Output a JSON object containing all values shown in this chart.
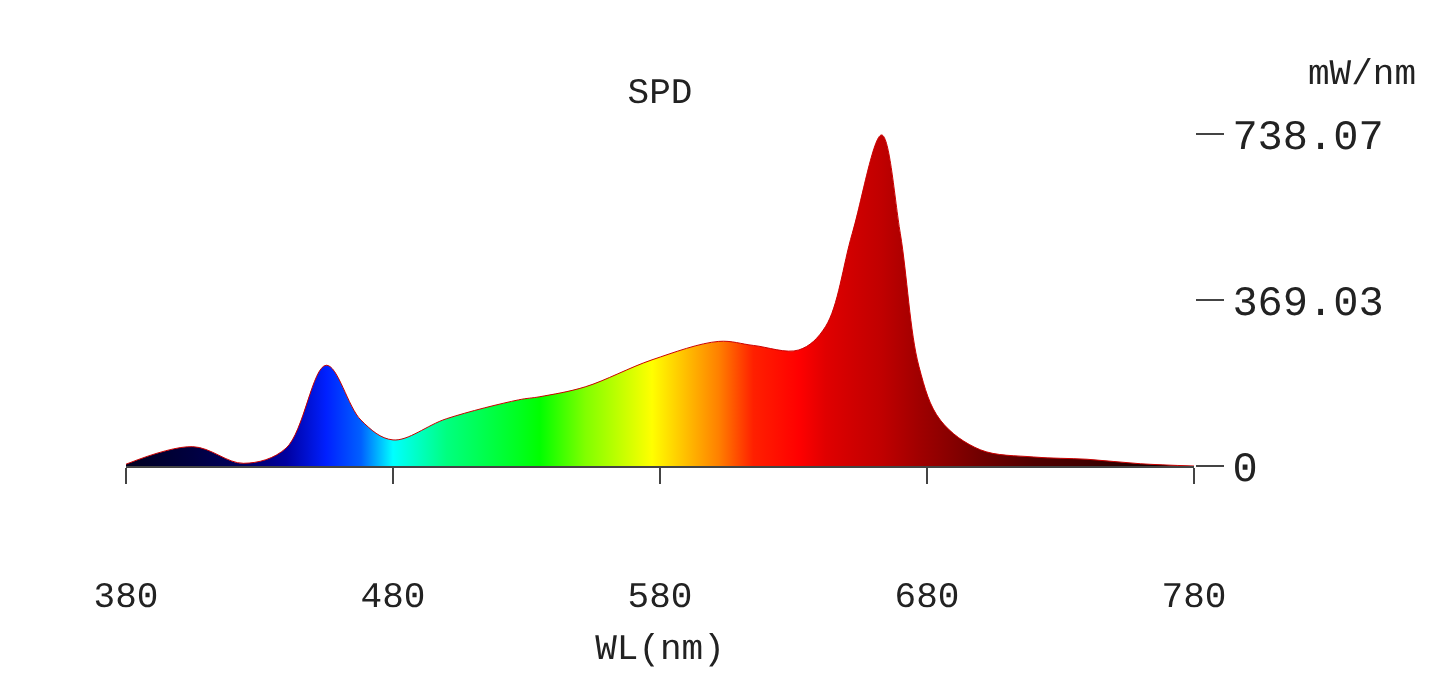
{
  "chart_data": {
    "type": "area",
    "title": "SPD",
    "xlabel": "WL(nm)",
    "ylabel": "mW/nm",
    "x": [
      380,
      405,
      424,
      440,
      455,
      468,
      480,
      500,
      527,
      535,
      552,
      577,
      602,
      615,
      632,
      642,
      652,
      663,
      670,
      677,
      685,
      700,
      720,
      740,
      760,
      780
    ],
    "series": [
      {
        "color": "#cc0000",
        "values": [
          4,
          43,
          6,
          40,
          224,
          102,
          58,
          105,
          147,
          154,
          176,
          236,
          277,
          268,
          258,
          310,
          517,
          736,
          517,
          221,
          102,
          36,
          20,
          15,
          5,
          0
        ],
        "colors": [
          "#000020",
          "#000040",
          "#000060",
          "#0000a0",
          "#0020ff",
          "#0060ff",
          "#00ffff",
          "#00ff80",
          "#00ff20",
          "#00ff00",
          "#80ff00",
          "#ffff00",
          "#ff8000",
          "#ff2000",
          "#ff0000",
          "#e00000",
          "#d00000",
          "#c00000",
          "#b00000",
          "#a00000",
          "#900000",
          "#700000",
          "#500000",
          "#400000",
          "#200000",
          "#000000"
        ]
      }
    ],
    "xlim": [
      380,
      780
    ],
    "xticks": [
      380,
      480,
      580,
      680,
      780
    ],
    "ylim": [
      0,
      738.07
    ],
    "yticks": [
      0,
      369.03,
      738.07
    ]
  }
}
